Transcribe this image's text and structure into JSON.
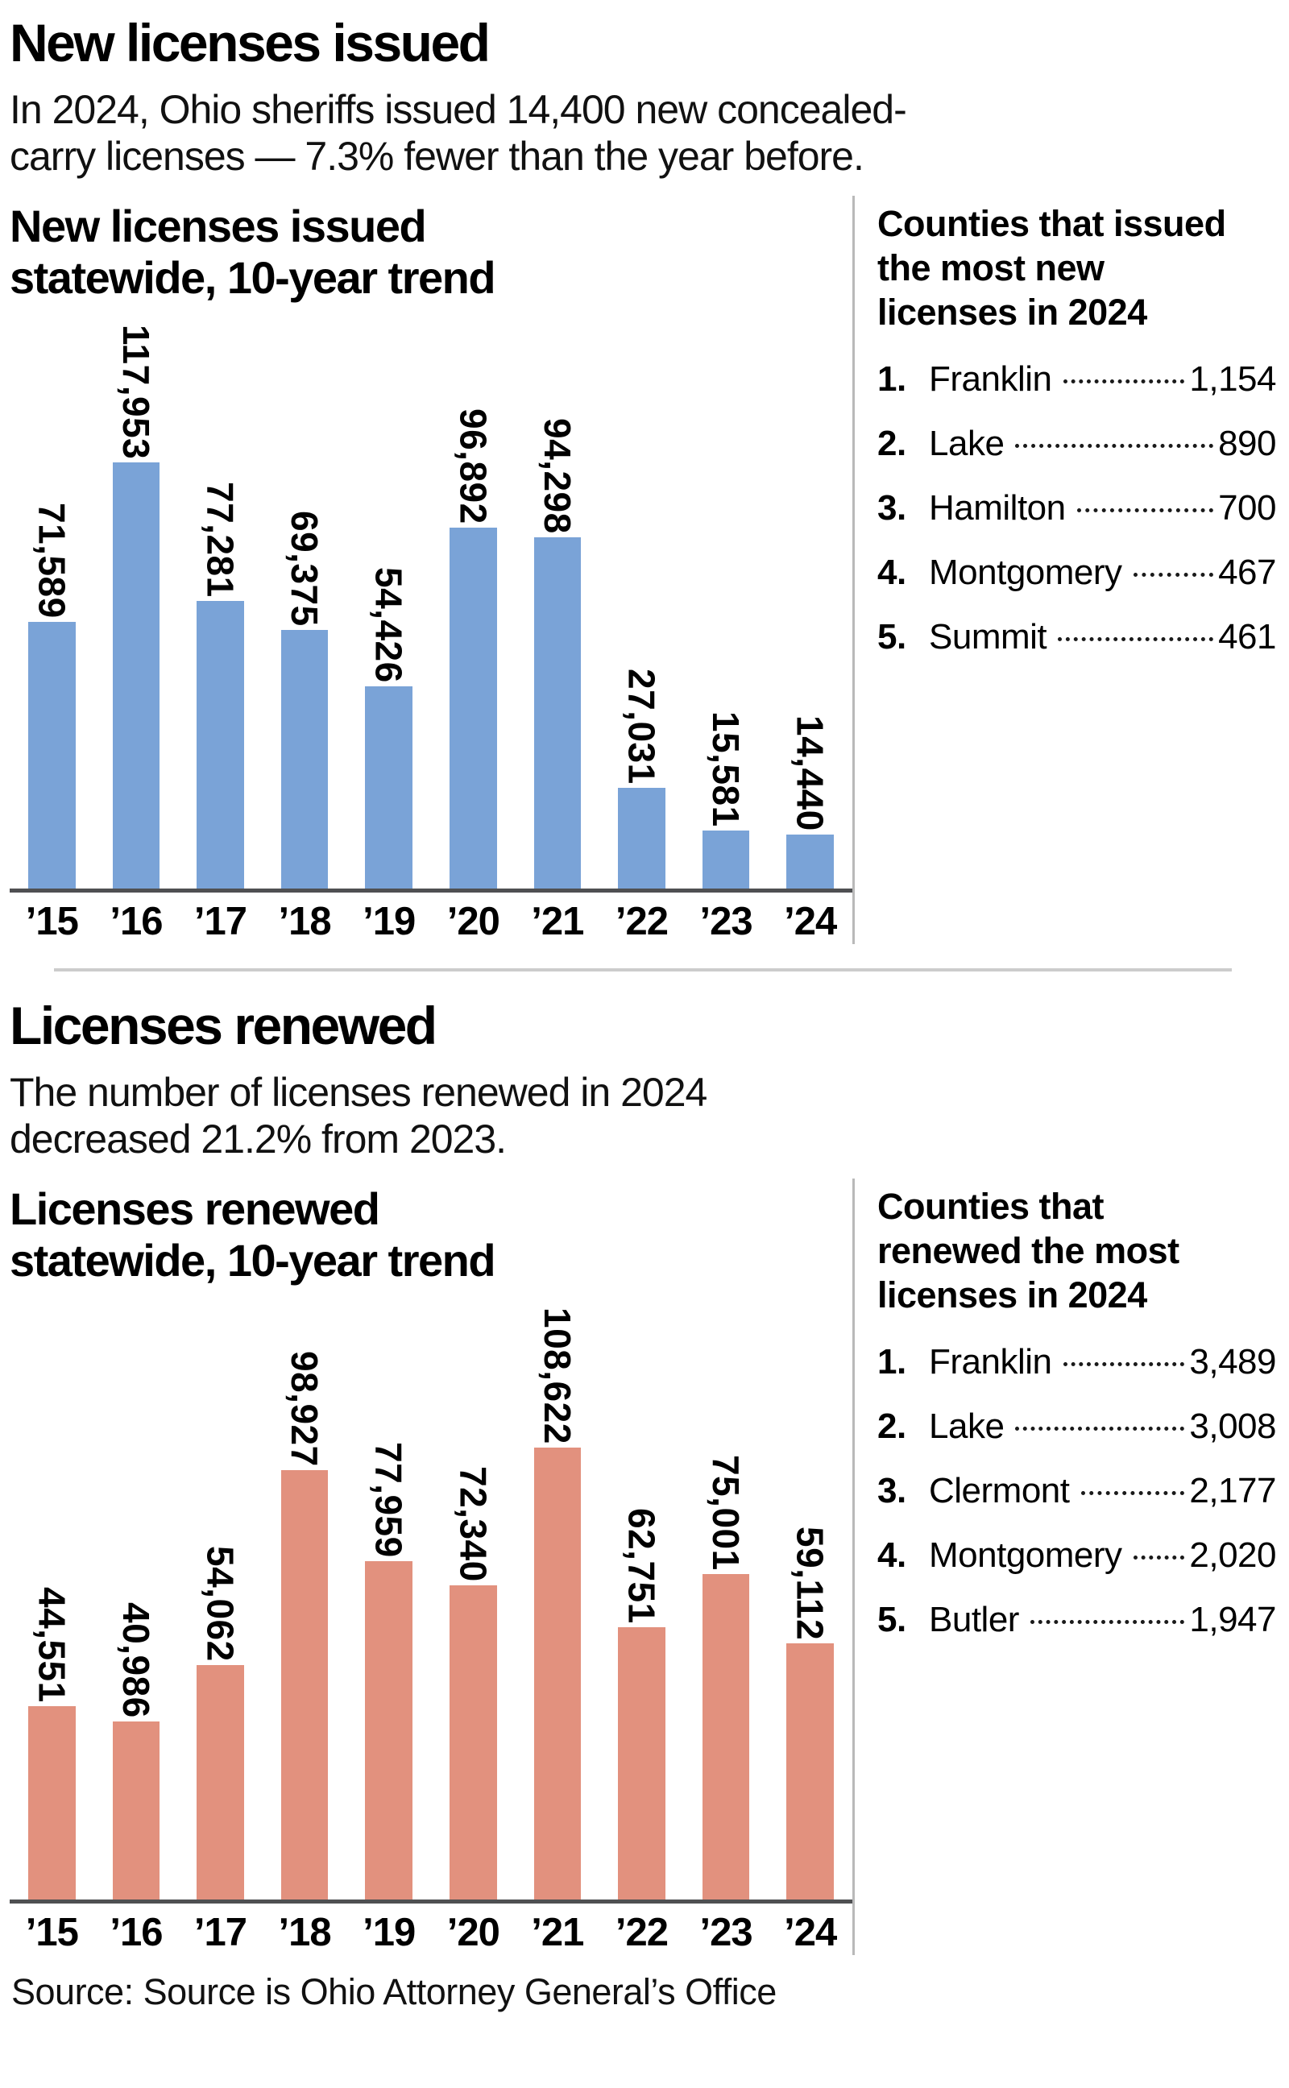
{
  "colors": {
    "bar_blue": "#7aa3d7",
    "bar_salmon": "#e2917e",
    "axis_line": "#4f5052",
    "vertical_rule": "#b9b9b9",
    "section_divider": "#cccccc"
  },
  "sections": [
    {
      "title": "New licenses issued",
      "subtitle": "In 2024, Ohio sheriffs issued 14,400 new concealed-\ncarry licenses — 7.3% fewer than the year before.",
      "list": {
        "title": "Counties that issued\nthe most new\nlicenses in 2024",
        "items": [
          {
            "rank": "1.",
            "name": "Franklin",
            "value": "1,154"
          },
          {
            "rank": "2.",
            "name": "Lake",
            "value": "890"
          },
          {
            "rank": "3.",
            "name": "Hamilton",
            "value": "700"
          },
          {
            "rank": "4.",
            "name": "Montgomery",
            "value": "467"
          },
          {
            "rank": "5.",
            "name": "Summit",
            "value": "461"
          }
        ]
      }
    },
    {
      "title": "Licenses renewed",
      "subtitle": "The number of licenses renewed in 2024\ndecreased 21.2% from 2023.",
      "list": {
        "title": "Counties that\nrenewed the most\nlicenses in 2024",
        "items": [
          {
            "rank": "1.",
            "name": "Franklin",
            "value": "3,489"
          },
          {
            "rank": "2.",
            "name": "Lake",
            "value": "3,008"
          },
          {
            "rank": "3.",
            "name": "Clermont",
            "value": "2,177"
          },
          {
            "rank": "4.",
            "name": "Montgomery",
            "value": "2,020"
          },
          {
            "rank": "5.",
            "name": "Butler",
            "value": "1,947"
          }
        ]
      }
    }
  ],
  "chart_data": [
    {
      "type": "bar",
      "title": "New licenses issued\nstatewide, 10-year trend",
      "categories": [
        "’15",
        "’16",
        "’17",
        "’18",
        "’19",
        "’20",
        "’21",
        "’22",
        "’23",
        "’24"
      ],
      "values": [
        71589,
        117953,
        77281,
        69375,
        54426,
        96892,
        94298,
        27031,
        15581,
        14440
      ],
      "value_labels": [
        "71,589",
        "117,953",
        "77,281",
        "69,375",
        "54,426",
        "96,892",
        "94,298",
        "27,031",
        "15,581",
        "14,440"
      ],
      "bar_color": "#7aa3d7",
      "xlabel": "",
      "ylabel": "",
      "ylim": [
        0,
        117953
      ],
      "grid": false,
      "legend": null,
      "value_label_orientation": "vertical"
    },
    {
      "type": "bar",
      "title": "Licenses renewed\nstatewide, 10-year trend",
      "categories": [
        "’15",
        "’16",
        "’17",
        "’18",
        "’19",
        "’20",
        "’21",
        "’22",
        "’23",
        "’24"
      ],
      "values": [
        44551,
        40986,
        54062,
        98927,
        77959,
        72340,
        108622,
        62751,
        75001,
        59112
      ],
      "value_labels": [
        "44,551",
        "40,986",
        "54,062",
        "98,927",
        "77,959",
        "72,340",
        "108,622",
        "62,751",
        "75,001",
        "59,112"
      ],
      "bar_color": "#e2917e",
      "xlabel": "",
      "ylabel": "",
      "ylim": [
        0,
        108622
      ],
      "grid": false,
      "legend": null,
      "value_label_orientation": "vertical"
    }
  ],
  "footer": {
    "source": "Source: Source is Ohio Attorney General’s Office"
  }
}
